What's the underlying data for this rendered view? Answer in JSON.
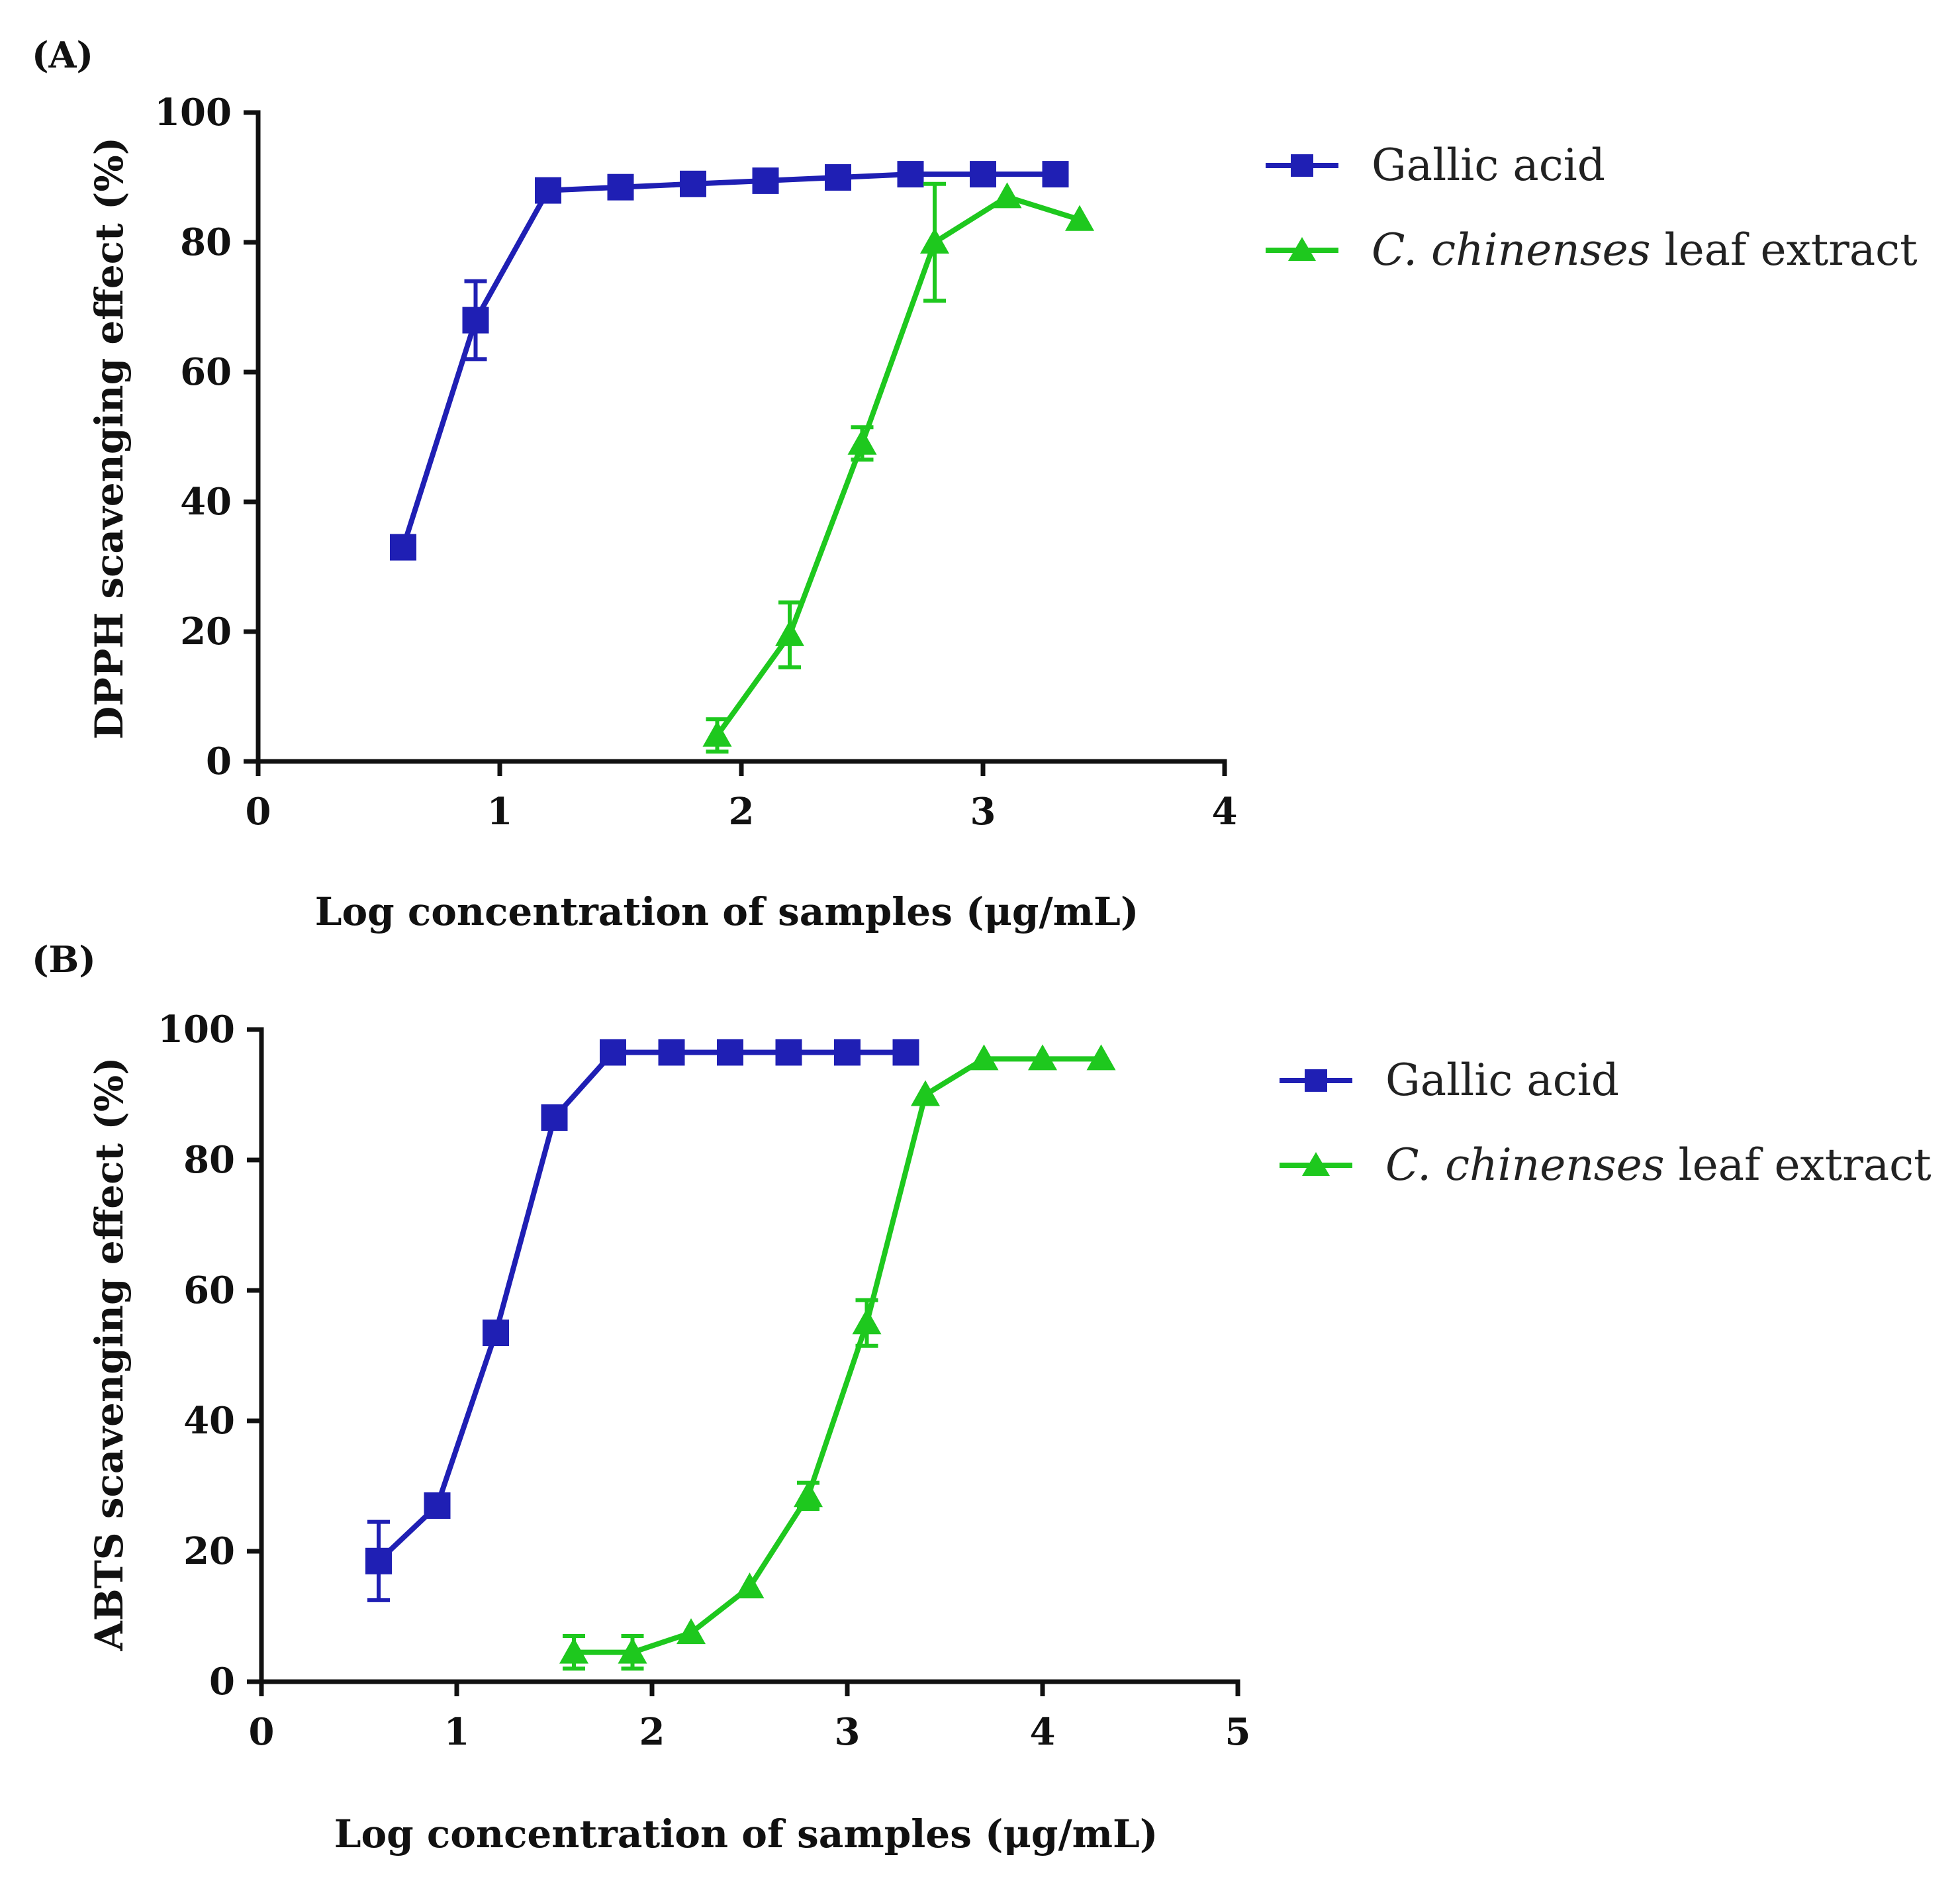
{
  "chart_data": [
    {
      "panel": "(A)",
      "type": "line",
      "xlabel": "Log concentration of samples  (μg/mL)",
      "ylabel": "DPPH scavenging effect (%)",
      "xlim": [
        0,
        4
      ],
      "ylim": [
        0,
        100
      ],
      "xticks": [
        "0",
        "1",
        "2",
        "3",
        "4"
      ],
      "yticks": [
        "0",
        "20",
        "40",
        "60",
        "80",
        "100"
      ],
      "legend": {
        "placement": "right",
        "entries": [
          {
            "name": "Gallic acid",
            "italic": "",
            "rest": ""
          },
          {
            "name": "",
            "italic": "C. chinenses",
            "rest": " leaf extract"
          }
        ]
      },
      "series": [
        {
          "name": "Gallic acid",
          "color": "#1f1fb4",
          "marker": "square",
          "x": [
            0.6,
            0.9,
            1.2,
            1.5,
            1.8,
            2.1,
            2.4,
            2.7,
            3.0,
            3.3
          ],
          "y": [
            33,
            68,
            88,
            88.5,
            89,
            89.5,
            90,
            90.5,
            90.5,
            90.5
          ],
          "err": [
            0,
            6,
            0,
            0,
            0,
            0,
            0,
            0,
            0,
            0
          ]
        },
        {
          "name": "C. chinenses leaf extract",
          "color": "#1ec81e",
          "marker": "triangle",
          "x": [
            1.9,
            2.2,
            2.5,
            2.8,
            3.1,
            3.4
          ],
          "y": [
            4,
            19.5,
            49,
            80,
            87,
            83.5
          ],
          "err": [
            2.5,
            5,
            2.5,
            9,
            0,
            0
          ]
        }
      ]
    },
    {
      "panel": "(B)",
      "type": "line",
      "xlabel": "Log concentration of samples  (μg/mL)",
      "ylabel": "ABTS scavenging effect (%)",
      "xlim": [
        0,
        5
      ],
      "ylim": [
        0,
        100
      ],
      "xticks": [
        "0",
        "1",
        "2",
        "3",
        "4",
        "5"
      ],
      "yticks": [
        "0",
        "20",
        "40",
        "60",
        "80",
        "100"
      ],
      "legend": {
        "placement": "right",
        "entries": [
          {
            "name": "Gallic acid",
            "italic": "",
            "rest": ""
          },
          {
            "name": "",
            "italic": "C. chinenses",
            "rest": " leaf extract"
          }
        ]
      },
      "series": [
        {
          "name": "Gallic acid",
          "color": "#1f1fb4",
          "marker": "square",
          "x": [
            0.6,
            0.9,
            1.2,
            1.5,
            1.8,
            2.1,
            2.4,
            2.7,
            3.0,
            3.3
          ],
          "y": [
            18.5,
            27,
            53.5,
            86.5,
            96.5,
            96.5,
            96.5,
            96.5,
            96.5,
            96.5
          ],
          "err": [
            6,
            0,
            0,
            0,
            0,
            0,
            0,
            0,
            0,
            0
          ]
        },
        {
          "name": "C. chinenses leaf extract",
          "color": "#1ec81e",
          "marker": "triangle",
          "x": [
            1.6,
            1.9,
            2.2,
            2.5,
            2.8,
            3.1,
            3.4,
            3.7,
            4.0,
            4.3
          ],
          "y": [
            4.5,
            4.5,
            7.5,
            14.5,
            28.5,
            55,
            90,
            95.5,
            95.5,
            95.5
          ],
          "err": [
            2.5,
            2.5,
            0,
            0,
            2,
            3.5,
            0,
            0,
            0,
            0
          ]
        }
      ]
    }
  ]
}
